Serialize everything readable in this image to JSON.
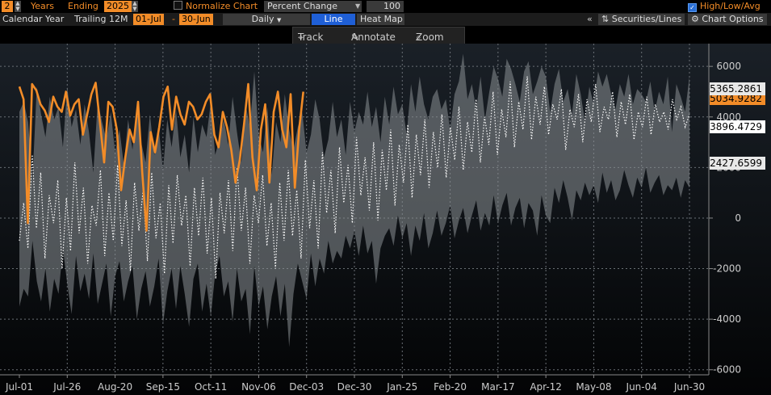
{
  "toolbar": {
    "years_value": "2",
    "years_label": "Years",
    "ending_label": "Ending",
    "ending_value": "2025",
    "normalize_label": "Normalize Chart",
    "normalize_mode": "Percent Change",
    "normalize_base": "100",
    "highlowavg_label": "High/Low/Avg"
  },
  "subbar": {
    "calendar_year": "Calendar Year",
    "trailing": "Trailing 12M",
    "start": "01-Jul",
    "end": "30-Jun",
    "frequency": "Daily",
    "line_tab": "Line",
    "heatmap_tab": "Heat Map",
    "collapse": "«",
    "securities": "Securities/Lines",
    "chart_options": "Chart Options"
  },
  "chart_tools": {
    "track": "Track",
    "annotate": "Annotate",
    "zoom": "Zoom"
  },
  "colors": {
    "current": "#f28c28",
    "avg": "#ffffff",
    "band": "#8a8f94",
    "background": "#0d1116"
  },
  "chart_data": {
    "type": "line",
    "title": "",
    "xlabel": "",
    "ylabel": "",
    "x_ticks": [
      "Jul-01",
      "Jul-26",
      "Aug-20",
      "Sep-15",
      "Oct-11",
      "Nov-06",
      "Dec-03",
      "Dec-30",
      "Jan-25",
      "Feb-20",
      "Mar-17",
      "Apr-12",
      "May-08",
      "Jun-04",
      "Jun-30"
    ],
    "y_ticks": [
      6000,
      4000,
      2000,
      0,
      -2000,
      -4000,
      -6000
    ],
    "ylim": [
      -6200,
      6900
    ],
    "grid": true,
    "value_labels": {
      "high": "5365.2861",
      "current": "5034.9282",
      "avg": "3896.4729",
      "low": "2427.6599"
    },
    "current_series": [
      5200,
      4700,
      -200,
      5300,
      5050,
      4500,
      4250,
      3800,
      4800,
      4400,
      4200,
      5000,
      4050,
      4500,
      4700,
      3300,
      4100,
      4900,
      5350,
      3800,
      2200,
      4600,
      4400,
      3500,
      1100,
      2400,
      3500,
      3000,
      4600,
      1800,
      -500,
      3400,
      2600,
      3600,
      4800,
      5200,
      3500,
      4800,
      4100,
      3700,
      4600,
      4400,
      3900,
      4100,
      4600,
      4900,
      3300,
      2800,
      4200,
      3600,
      2700,
      1400,
      2300,
      3700,
      5300,
      2400,
      1100,
      3500,
      4500,
      1400,
      4200,
      5000,
      3500,
      2800,
      4900,
      1200,
      3500,
      5000
    ],
    "band_high": [
      4200,
      4600,
      3800,
      1500,
      5200,
      4100,
      3200,
      4800,
      3900,
      4400,
      2800,
      5200,
      3600,
      4300,
      2900,
      4500,
      3400,
      1800,
      4600,
      3800,
      3100,
      4200,
      2600,
      3500,
      2100,
      3900,
      2700,
      4400,
      3000,
      2200,
      4100,
      2500,
      3600,
      1900,
      3900,
      2800,
      4300,
      2400,
      3300,
      1800,
      4000,
      2600,
      3700,
      3200,
      4600,
      2500,
      3100,
      3900,
      2900,
      4800,
      3400,
      2200,
      4500,
      3600,
      5800,
      3300,
      2600,
      4400,
      1700,
      3800,
      3000,
      4900,
      3500,
      2700,
      3600,
      4200,
      2600,
      3300,
      4700,
      3900,
      2400,
      3100,
      4600,
      3200,
      3900,
      2500,
      4600,
      3400,
      4200,
      3700,
      5000,
      3600,
      4400,
      3000,
      4800,
      3700,
      5200,
      4100,
      4500,
      3300,
      5300,
      4200,
      5600,
      4500,
      3900,
      4800,
      5100,
      4300,
      4700,
      3500,
      4900,
      5400,
      6500,
      4700,
      5300,
      4300,
      5600,
      3900,
      5000,
      6000,
      5500,
      4800,
      6300,
      5900,
      5300,
      4600,
      5800,
      6200,
      4900,
      5400,
      6000,
      5600,
      4200,
      5300,
      5900,
      4600,
      5100,
      4100,
      5700,
      4900,
      3800,
      5200,
      4500,
      5800,
      5200,
      5700,
      4900,
      4300,
      5300,
      4800,
      5700,
      4500,
      5100,
      4900,
      4600,
      5400,
      4200,
      5000,
      4500,
      5600,
      3400,
      5300,
      4800,
      4200,
      5600
    ],
    "band_low": [
      -3500,
      -2800,
      -3100,
      -900,
      -2500,
      -3300,
      -2000,
      -3700,
      -2400,
      -3000,
      -1200,
      -2600,
      -3800,
      -1500,
      -2900,
      -2200,
      -3200,
      -1400,
      -3400,
      -2600,
      -1800,
      -3900,
      -2300,
      -1700,
      -3300,
      -2500,
      -1900,
      -4000,
      -2800,
      -2100,
      -3500,
      -2700,
      -1600,
      -4200,
      -2900,
      -2000,
      -3600,
      -1900,
      -3000,
      -4300,
      -2400,
      -1800,
      -3700,
      -2600,
      -3900,
      -2200,
      -1500,
      -3100,
      -2500,
      -4100,
      -2000,
      -3300,
      -2800,
      -4600,
      -1900,
      -3500,
      -2700,
      -4400,
      -3100,
      -2300,
      -3900,
      -2600,
      -5100,
      -3000,
      -1800,
      -2500,
      -3200,
      -1400,
      -2700,
      -1600,
      -2200,
      -900,
      -1800,
      -1300,
      -1600,
      -700,
      -1200,
      -500,
      -1500,
      -300,
      -1400,
      -900,
      -2600,
      -1200,
      -700,
      -400,
      -1100,
      100,
      -800,
      -200,
      -1500,
      -300,
      -900,
      200,
      -1200,
      -600,
      300,
      -700,
      -200,
      500,
      -800,
      -100,
      400,
      -600,
      100,
      700,
      -500,
      200,
      -300,
      900,
      -200,
      500,
      1000,
      -300,
      400,
      800,
      -400,
      600,
      300,
      -700,
      900,
      100,
      -200,
      1200,
      600,
      1500,
      800,
      -100,
      1100,
      700,
      1400,
      900,
      1300,
      600,
      1800,
      1000,
      1500,
      700,
      1100,
      1900,
      1300,
      800,
      1600,
      1200,
      2000,
      1000,
      1400,
      1700,
      900,
      1300,
      1100,
      1600,
      800,
      1500,
      1200,
      1800,
      1000,
      1300,
      1600
    ],
    "avg_series": [
      -900,
      600,
      -1200,
      2500,
      -400,
      1800,
      -1600,
      900,
      -200,
      1500,
      -2000,
      800,
      -1300,
      2200,
      -600,
      1200,
      -1800,
      500,
      -300,
      1900,
      -1500,
      1000,
      -900,
      2100,
      -1100,
      700,
      -2100,
      1400,
      -500,
      1100,
      -1700,
      1800,
      -800,
      600,
      -2200,
      1300,
      -1000,
      1700,
      -300,
      900,
      -1900,
      1200,
      -700,
      1600,
      -1400,
      800,
      -2400,
      1000,
      -600,
      1500,
      -1300,
      2000,
      -500,
      1200,
      -1800,
      900,
      -200,
      1700,
      -1100,
      600,
      -2000,
      1400,
      -900,
      1900,
      -700,
      1100,
      -1600,
      2300,
      -400,
      1500,
      -1200,
      2600,
      200,
      1900,
      -600,
      2800,
      600,
      2100,
      -200,
      3200,
      900,
      2400,
      300,
      3000,
      -100,
      2700,
      1100,
      3500,
      500,
      2900,
      1400,
      3700,
      800,
      3300,
      1700,
      3900,
      1200,
      3400,
      2000,
      4100,
      1600,
      3600,
      2300,
      4400,
      1900,
      3800,
      2600,
      4700,
      2200,
      4000,
      2900,
      5000,
      2500,
      4300,
      3200,
      5400,
      2800,
      4600,
      3500,
      5600,
      3100,
      4800,
      3700,
      5200,
      3300,
      4500,
      3900,
      5100,
      2700,
      4300,
      3600,
      4900,
      3000,
      4700,
      3800,
      5300,
      3400,
      4400,
      3900,
      5000,
      3200,
      4600,
      3700,
      4900,
      3100,
      4200,
      3600,
      4800,
      3300,
      4500,
      3800,
      4200,
      3500,
      4700,
      3900,
      4400,
      3600,
      4100
    ]
  }
}
